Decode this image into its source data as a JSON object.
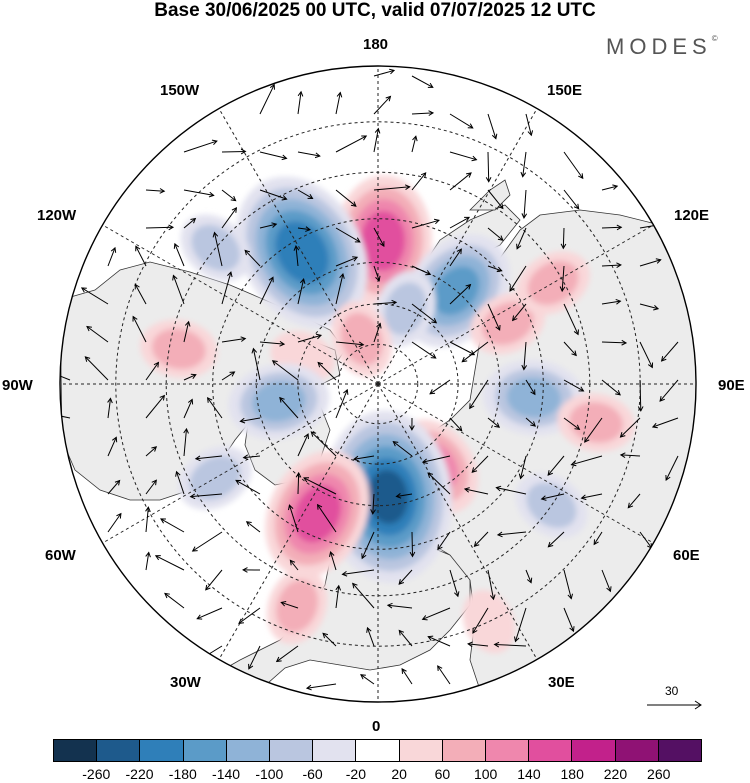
{
  "title": "Base 30/06/2025 00 UTC, valid 07/07/2025 12 UTC",
  "brand": "MODES",
  "brand_mark": "©",
  "longitude_labels": {
    "lon_180": "180",
    "lon_150e": "150E",
    "lon_120e": "120E",
    "lon_90e": "90E",
    "lon_60e": "60E",
    "lon_30e": "30E",
    "lon_0": "0",
    "lon_30w": "30W",
    "lon_60w": "60W",
    "lon_90w": "90W",
    "lon_120w": "120W",
    "lon_150w": "150W"
  },
  "reference_vector": {
    "value": "30"
  },
  "colorbar": {
    "colors": [
      "#13324f",
      "#1e5a8c",
      "#2f7fb9",
      "#5b9bc8",
      "#8fb3d7",
      "#bac6e0",
      "#e2e2ef",
      "#ffffff",
      "#f9d7d9",
      "#f3aeb8",
      "#ef87ad",
      "#e14f9e",
      "#c2218b",
      "#8f1274",
      "#541063"
    ],
    "labels": [
      "-260",
      "-220",
      "-180",
      "-140",
      "-100",
      "-60",
      "-20",
      "20",
      "60",
      "100",
      "140",
      "180",
      "220",
      "260"
    ]
  },
  "map_data": {
    "projection": "north-polar-stereographic",
    "field": "anomaly shaded with wind vectors",
    "anomalies": [
      {
        "lon": 178,
        "lat": 55,
        "value": 150
      },
      {
        "lon": -150,
        "lat": 53,
        "value": -200
      },
      {
        "lon": -130,
        "lat": 40,
        "value": -60
      },
      {
        "lon": -100,
        "lat": 42,
        "value": 60
      },
      {
        "lon": -110,
        "lat": 70,
        "value": 40
      },
      {
        "lon": 140,
        "lat": 60,
        "value": -140
      },
      {
        "lon": 115,
        "lat": 55,
        "value": 60
      },
      {
        "lon": 120,
        "lat": 42,
        "value": 60
      },
      {
        "lon": 85,
        "lat": 52,
        "value": -100
      },
      {
        "lon": 80,
        "lat": 38,
        "value": 60
      },
      {
        "lon": 55,
        "lat": 40,
        "value": -60
      },
      {
        "lon": 35,
        "lat": 65,
        "value": 100
      },
      {
        "lon": 5,
        "lat": 62,
        "value": -220
      },
      {
        "lon": -25,
        "lat": 55,
        "value": 150
      },
      {
        "lon": -20,
        "lat": 35,
        "value": 60
      },
      {
        "lon": -60,
        "lat": 45,
        "value": -60
      },
      {
        "lon": -80,
        "lat": 65,
        "value": -100
      },
      {
        "lon": 160,
        "lat": 70,
        "value": -60
      },
      {
        "lon": -160,
        "lat": 78,
        "value": 60
      },
      {
        "lon": 25,
        "lat": 30,
        "value": 40
      }
    ]
  }
}
